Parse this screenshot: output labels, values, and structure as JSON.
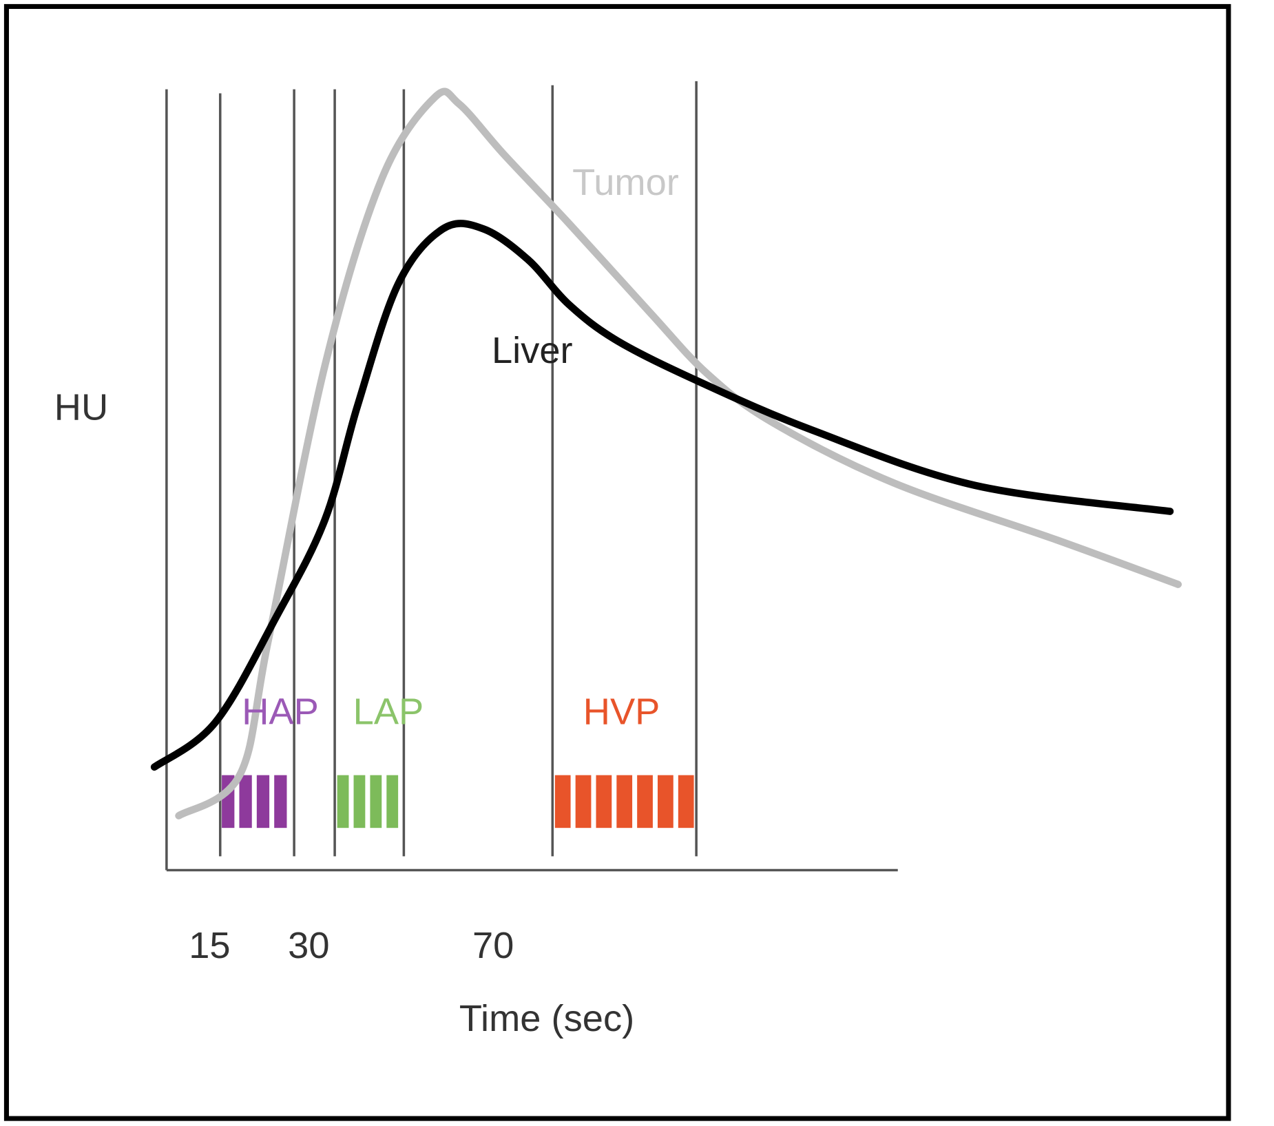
{
  "y_label": "HU",
  "curves": [
    {
      "label": "Tumor"
    },
    {
      "label": "Liver"
    }
  ],
  "phases": [
    {
      "label": "HAP"
    },
    {
      "label": "LAP"
    },
    {
      "label": "HVP"
    }
  ],
  "x_ticks": [
    "15",
    "30",
    "70"
  ],
  "x_label": "Time (sec)"
}
